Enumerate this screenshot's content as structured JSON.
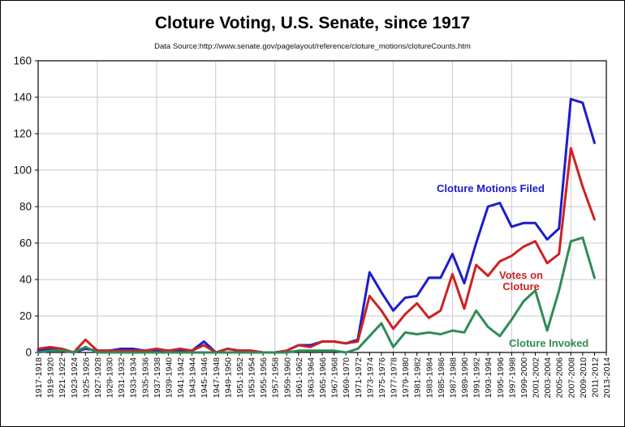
{
  "chart_data": {
    "type": "line",
    "title": "Cloture Voting, U.S. Senate, since 1917",
    "subtitle": "Data Source:http://www.senate.gov/pagelayout/reference/cloture_motions/clotureCounts.htm",
    "categories": [
      "1917-1918",
      "1919-1920",
      "1921-1922",
      "1923-1924",
      "1925-1926",
      "1927-1928",
      "1929-1930",
      "1931-1932",
      "1933-1934",
      "1935-1936",
      "1937-1938",
      "1939-1940",
      "1941-1942",
      "1943-1944",
      "1945-1946",
      "1947-1948",
      "1949-1950",
      "1951-1952",
      "1953-1954",
      "1955-1956",
      "1957-1958",
      "1959-1960",
      "1961-1962",
      "1963-1964",
      "1965-1966",
      "1967-1968",
      "1969-1970",
      "1971-1972",
      "1973-1974",
      "1975-1976",
      "1977-1978",
      "1979-1980",
      "1981-1982",
      "1983-1984",
      "1985-1986",
      "1987-1988",
      "1989-1990",
      "1991-1992",
      "1993-1994",
      "1995-1996",
      "1997-1998",
      "1999-2000",
      "2001-2002",
      "2003-2004",
      "2005-2006",
      "2007-2008",
      "2009-2010",
      "2011-2012",
      "2013-2014"
    ],
    "series": [
      {
        "name": "Cloture Motions Filed",
        "color": "#1c1ccd",
        "values": [
          1,
          2,
          2,
          0,
          2,
          1,
          1,
          2,
          2,
          1,
          1,
          1,
          1,
          1,
          6,
          0,
          2,
          1,
          1,
          0,
          0,
          1,
          4,
          4,
          6,
          6,
          5,
          7,
          44,
          33,
          23,
          30,
          31,
          41,
          41,
          54,
          38,
          60,
          80,
          82,
          69,
          71,
          71,
          62,
          68,
          139,
          137,
          115
        ]
      },
      {
        "name": "Votes on Cloture",
        "color": "#cc2222",
        "values": [
          2,
          3,
          2,
          0,
          7,
          1,
          1,
          1,
          1,
          1,
          2,
          1,
          2,
          1,
          4,
          0,
          2,
          1,
          1,
          0,
          0,
          1,
          4,
          3,
          6,
          6,
          5,
          6,
          31,
          23,
          13,
          21,
          27,
          19,
          23,
          43,
          24,
          48,
          42,
          50,
          53,
          58,
          61,
          49,
          54,
          112,
          91,
          73
        ]
      },
      {
        "name": "Cloture Invoked",
        "color": "#2e8b57",
        "values": [
          0,
          1,
          1,
          0,
          3,
          0,
          0,
          0,
          0,
          0,
          0,
          0,
          0,
          0,
          0,
          0,
          0,
          0,
          0,
          0,
          0,
          0,
          1,
          1,
          1,
          1,
          0,
          2,
          9,
          16,
          3,
          11,
          10,
          11,
          10,
          12,
          11,
          23,
          14,
          9,
          18,
          28,
          34,
          12,
          34,
          61,
          63,
          41
        ]
      }
    ],
    "note": "No data point plotted for 2013-2014",
    "ylim": [
      0,
      160
    ],
    "y_ticks": [
      0,
      20,
      40,
      60,
      80,
      100,
      120,
      140,
      160
    ],
    "x_gridline_every": 5,
    "grid": true,
    "legend_position": "inline-annotations",
    "colors": {
      "grid": "#c9c9c9",
      "axis": "#000000",
      "background": "#ffffff",
      "tick_label": "#111111"
    }
  }
}
